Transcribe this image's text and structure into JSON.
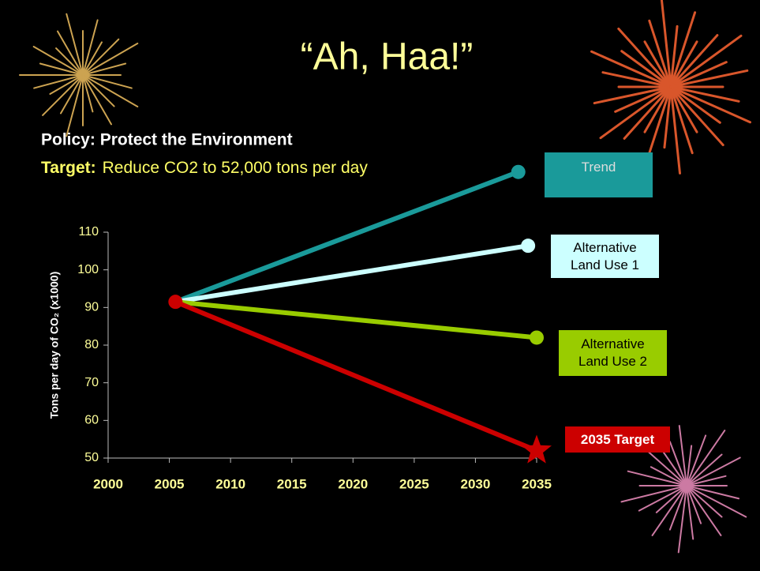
{
  "chart_data": {
    "type": "line",
    "title": "“Ah, Haa!”",
    "subtitle": "Policy: Protect the Environment",
    "target_label": "Target:",
    "target_text": "Reduce CO2 to 52,000 tons per day",
    "y_label": "Tons per day of CO₂ (x1000)",
    "xlim": [
      2000,
      2035
    ],
    "xticks": [
      2000,
      2005,
      2010,
      2015,
      2020,
      2025,
      2030,
      2035
    ],
    "ylim": [
      50,
      110
    ],
    "yticks": [
      50,
      60,
      70,
      80,
      90,
      100,
      110
    ],
    "series": [
      {
        "name": "Trend",
        "color": "#1a9a9a",
        "marker": "circle",
        "x": [
          2005.5,
          2033.5
        ],
        "values": [
          91.5,
          126
        ]
      },
      {
        "name": "Alternative Land Use 1",
        "color": "#ccffff",
        "marker": "circle",
        "x": [
          2005.5,
          2034.3
        ],
        "values": [
          91.5,
          106.4
        ]
      },
      {
        "name": "Alternative Land Use 2",
        "color": "#99cc00",
        "marker": "circle",
        "x": [
          2005.5,
          2035
        ],
        "values": [
          91.5,
          82
        ]
      },
      {
        "name": "2035 Target",
        "color": "#cc0000",
        "marker": "star",
        "x": [
          2005.5,
          2035
        ],
        "values": [
          91.5,
          52
        ]
      }
    ]
  }
}
